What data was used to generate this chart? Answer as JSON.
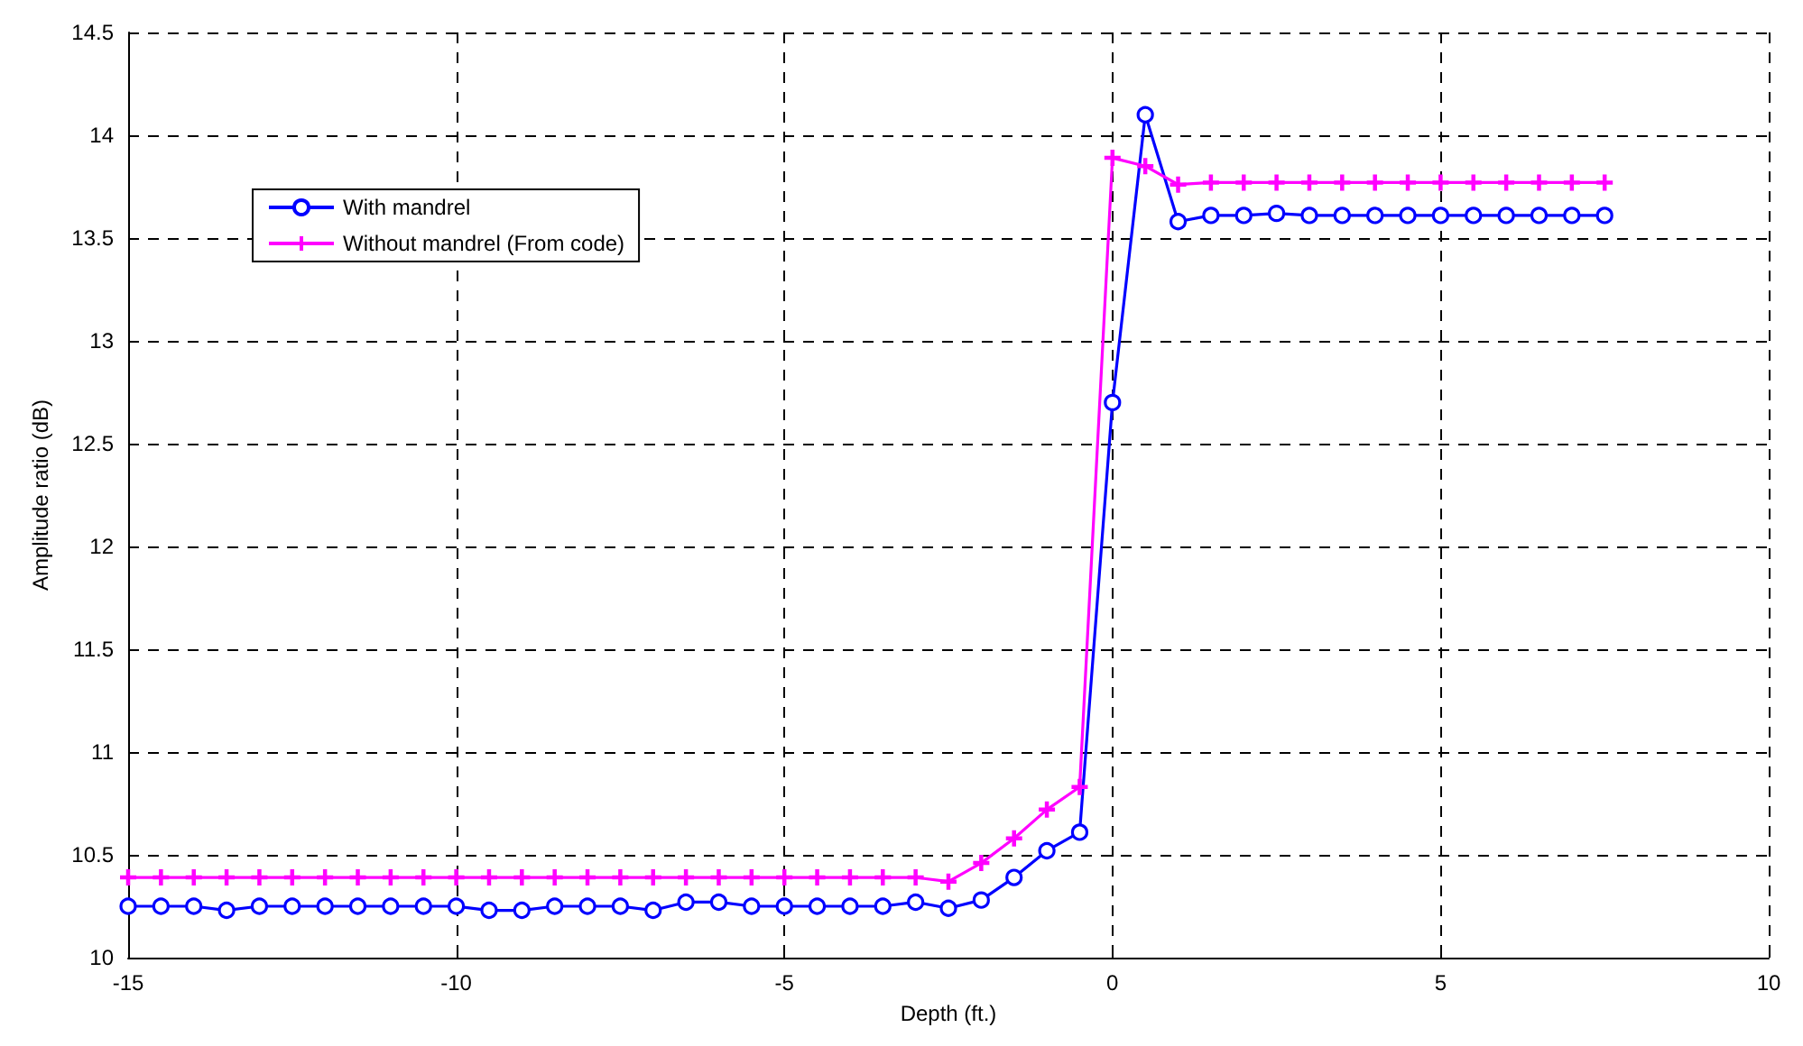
{
  "chart_data": {
    "type": "line",
    "xlabel": "Depth (ft.)",
    "ylabel": "Amplitude ratio (dB)",
    "x": [
      -15,
      -14.5,
      -14,
      -13.5,
      -13,
      -12.5,
      -12,
      -11.5,
      -11,
      -10.5,
      -10,
      -9.5,
      -9,
      -8.5,
      -8,
      -7.5,
      -7,
      -6.5,
      -6,
      -5.5,
      -5,
      -4.5,
      -4,
      -3.5,
      -3,
      -2.5,
      -2,
      -1.5,
      -1,
      -0.5,
      0,
      0.5,
      1,
      1.5,
      2,
      2.5,
      3,
      3.5,
      4,
      4.5,
      5,
      5.5,
      6,
      6.5,
      7,
      7.5
    ],
    "series": [
      {
        "name": "With mandrel",
        "color": "#0000ff",
        "marker": "circle",
        "values": [
          10.25,
          10.25,
          10.25,
          10.23,
          10.25,
          10.25,
          10.25,
          10.25,
          10.25,
          10.25,
          10.25,
          10.23,
          10.23,
          10.25,
          10.25,
          10.25,
          10.23,
          10.27,
          10.27,
          10.25,
          10.25,
          10.25,
          10.25,
          10.25,
          10.27,
          10.24,
          10.28,
          10.39,
          10.52,
          10.61,
          12.7,
          14.1,
          13.58,
          13.61,
          13.61,
          13.62,
          13.61,
          13.61,
          13.61,
          13.61,
          13.61,
          13.61,
          13.61,
          13.61,
          13.61,
          13.61
        ]
      },
      {
        "name": "Without mandrel (From code)",
        "color": "#ff00ff",
        "marker": "cross",
        "values": [
          10.39,
          10.39,
          10.39,
          10.39,
          10.39,
          10.39,
          10.39,
          10.39,
          10.39,
          10.39,
          10.39,
          10.39,
          10.39,
          10.39,
          10.39,
          10.39,
          10.39,
          10.39,
          10.39,
          10.39,
          10.39,
          10.39,
          10.39,
          10.39,
          10.39,
          10.37,
          10.46,
          10.58,
          10.72,
          10.83,
          13.89,
          13.85,
          13.76,
          13.77,
          13.77,
          13.77,
          13.77,
          13.77,
          13.77,
          13.77,
          13.77,
          13.77,
          13.77,
          13.77,
          13.77,
          13.77
        ]
      }
    ],
    "xlim": [
      -15,
      10
    ],
    "xticks": [
      -15,
      -10,
      -5,
      0,
      5,
      10
    ],
    "ylim": [
      10,
      14.5
    ],
    "yticks": [
      10,
      10.5,
      11,
      11.5,
      12,
      12.5,
      13,
      13.5,
      14,
      14.5
    ],
    "grid": true,
    "legend": "top left",
    "line_style": "solid"
  }
}
